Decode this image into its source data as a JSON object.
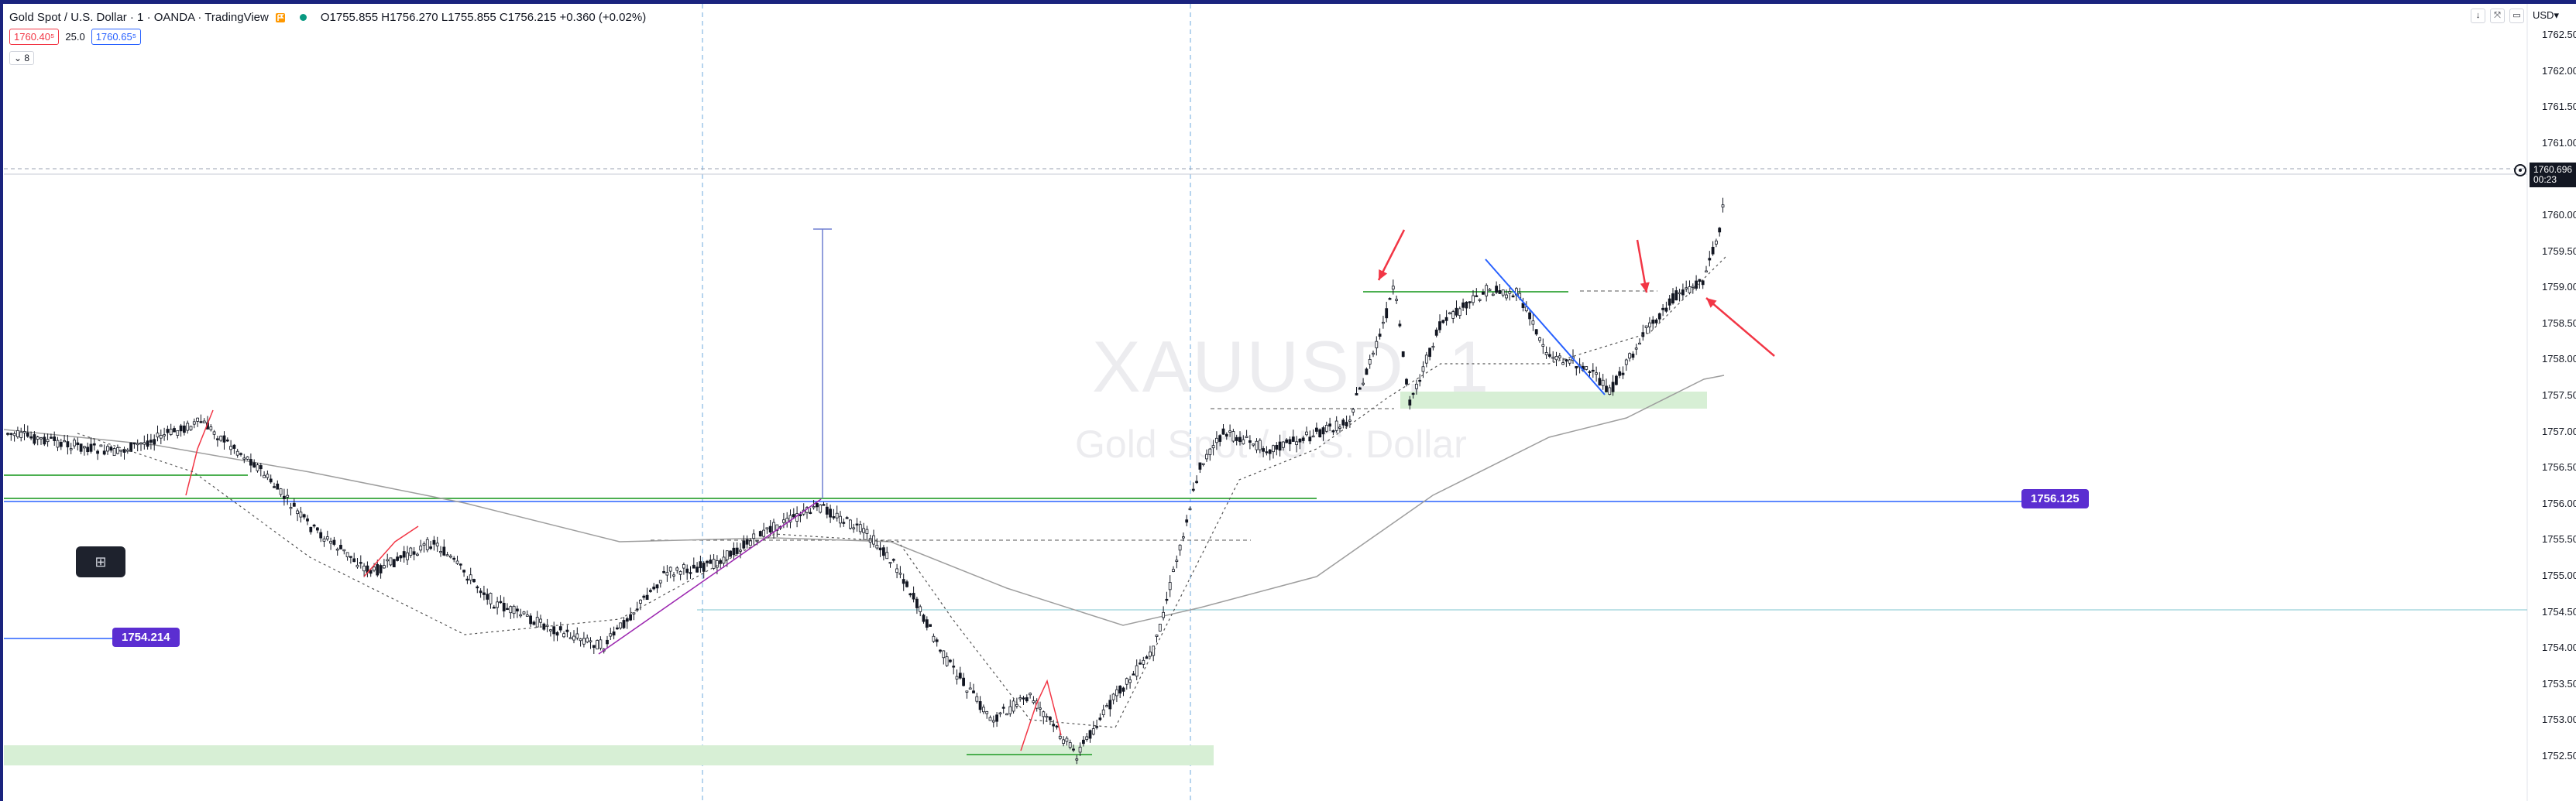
{
  "legend": {
    "symbol": "Gold Spot / U.S. Dollar · 1 · OANDA · TradingView",
    "ohlc": "O1755.855 H1756.270 L1755.855 C1756.215 +0.360 (+0.02%)",
    "sell_price": "1760.40⁵",
    "spread": "25.0",
    "buy_price": "1760.65⁵",
    "indicator_toggle": "8"
  },
  "watermark": {
    "ticker": "XAUUSD, 1",
    "name": "Gold Spot / U.S. Dollar"
  },
  "price_axis": {
    "labels": [
      "1762.500",
      "1762.000",
      "1761.500",
      "1761.000",
      "1760.500",
      "1760.000",
      "1759.500",
      "1759.000",
      "1758.500",
      "1758.000",
      "1757.500",
      "1757.000",
      "1756.500",
      "1756.000",
      "1755.500",
      "1755.000",
      "1754.500",
      "1754.000",
      "1753.500",
      "1753.000",
      "1752.500"
    ],
    "current_price": "1760.696",
    "countdown": "00:23",
    "currency": "USD"
  },
  "price_tags": {
    "level_right": "1756.125",
    "level_left": "1754.214"
  },
  "window_buttons": [
    "↓",
    "⤧",
    "▭"
  ],
  "float_button_icon": "⊞",
  "colors": {
    "candle": "#131722",
    "support_zone": "#d7efd5",
    "green_line": "#4caf50",
    "blue_line": "#2962ff",
    "red_arrow": "#f23645",
    "tag_bg": "#5b2ed1",
    "frame": "#1a237e"
  }
}
